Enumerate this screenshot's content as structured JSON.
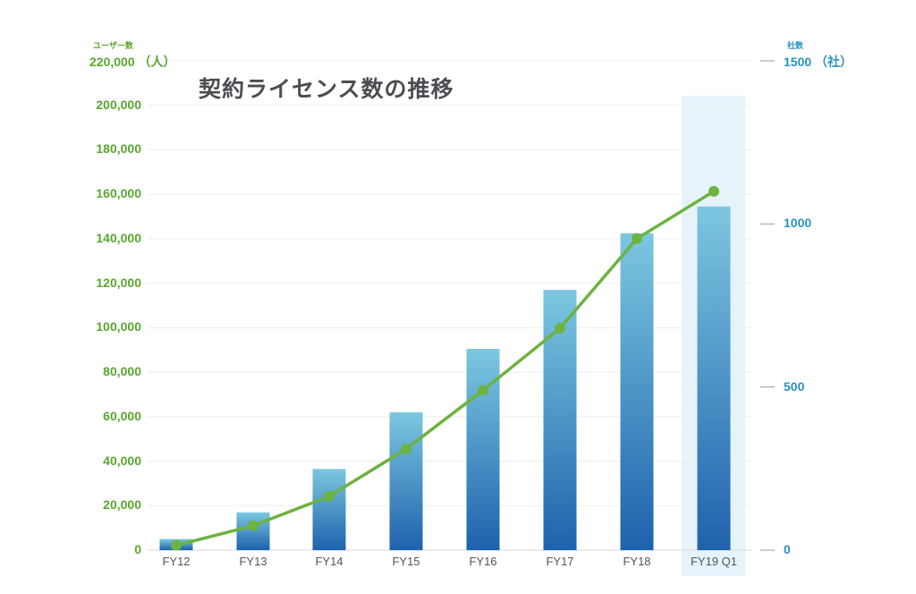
{
  "chart_data": {
    "type": "bar+line",
    "title": "契約ライセンス数の推移",
    "categories": [
      "FY12",
      "FY13",
      "FY14",
      "FY15",
      "FY16",
      "FY17",
      "FY18",
      "FY19 Q1"
    ],
    "series": [
      {
        "name": "ユーザー数",
        "axis": "left",
        "type": "bar",
        "values": [
          5000,
          17000,
          36500,
          62000,
          90500,
          117000,
          142500,
          154500
        ]
      },
      {
        "name": "社数",
        "axis": "right",
        "type": "line",
        "values": [
          15,
          75,
          165,
          310,
          490,
          680,
          955,
          1100
        ]
      }
    ],
    "left_axis": {
      "label": "ユーザー数",
      "unit": "（人）",
      "ylim": [
        0,
        220000
      ],
      "ticks": [
        "0",
        "20,000",
        "40,000",
        "60,000",
        "80,000",
        "100,000",
        "120,000",
        "140,000",
        "160,000",
        "180,000",
        "200,000",
        "220,000"
      ],
      "tick_values": [
        0,
        20000,
        40000,
        60000,
        80000,
        100000,
        120000,
        140000,
        160000,
        180000,
        200000,
        220000
      ]
    },
    "right_axis": {
      "label": "社数",
      "unit": "（社）",
      "ylim": [
        0,
        1500
      ],
      "ticks": [
        "0",
        "500",
        "1000",
        "1500"
      ],
      "tick_values": [
        0,
        500,
        1000,
        1500
      ]
    },
    "highlight_category": "FY19 Q1",
    "grid": true,
    "colors": {
      "bar_top": "#7cc7e0",
      "bar_bottom": "#1e62ad",
      "line": "#6db33f",
      "left_axis_text": "#5aa62e",
      "right_axis_text": "#2a92c4",
      "highlight": "#e6f3fb"
    }
  }
}
